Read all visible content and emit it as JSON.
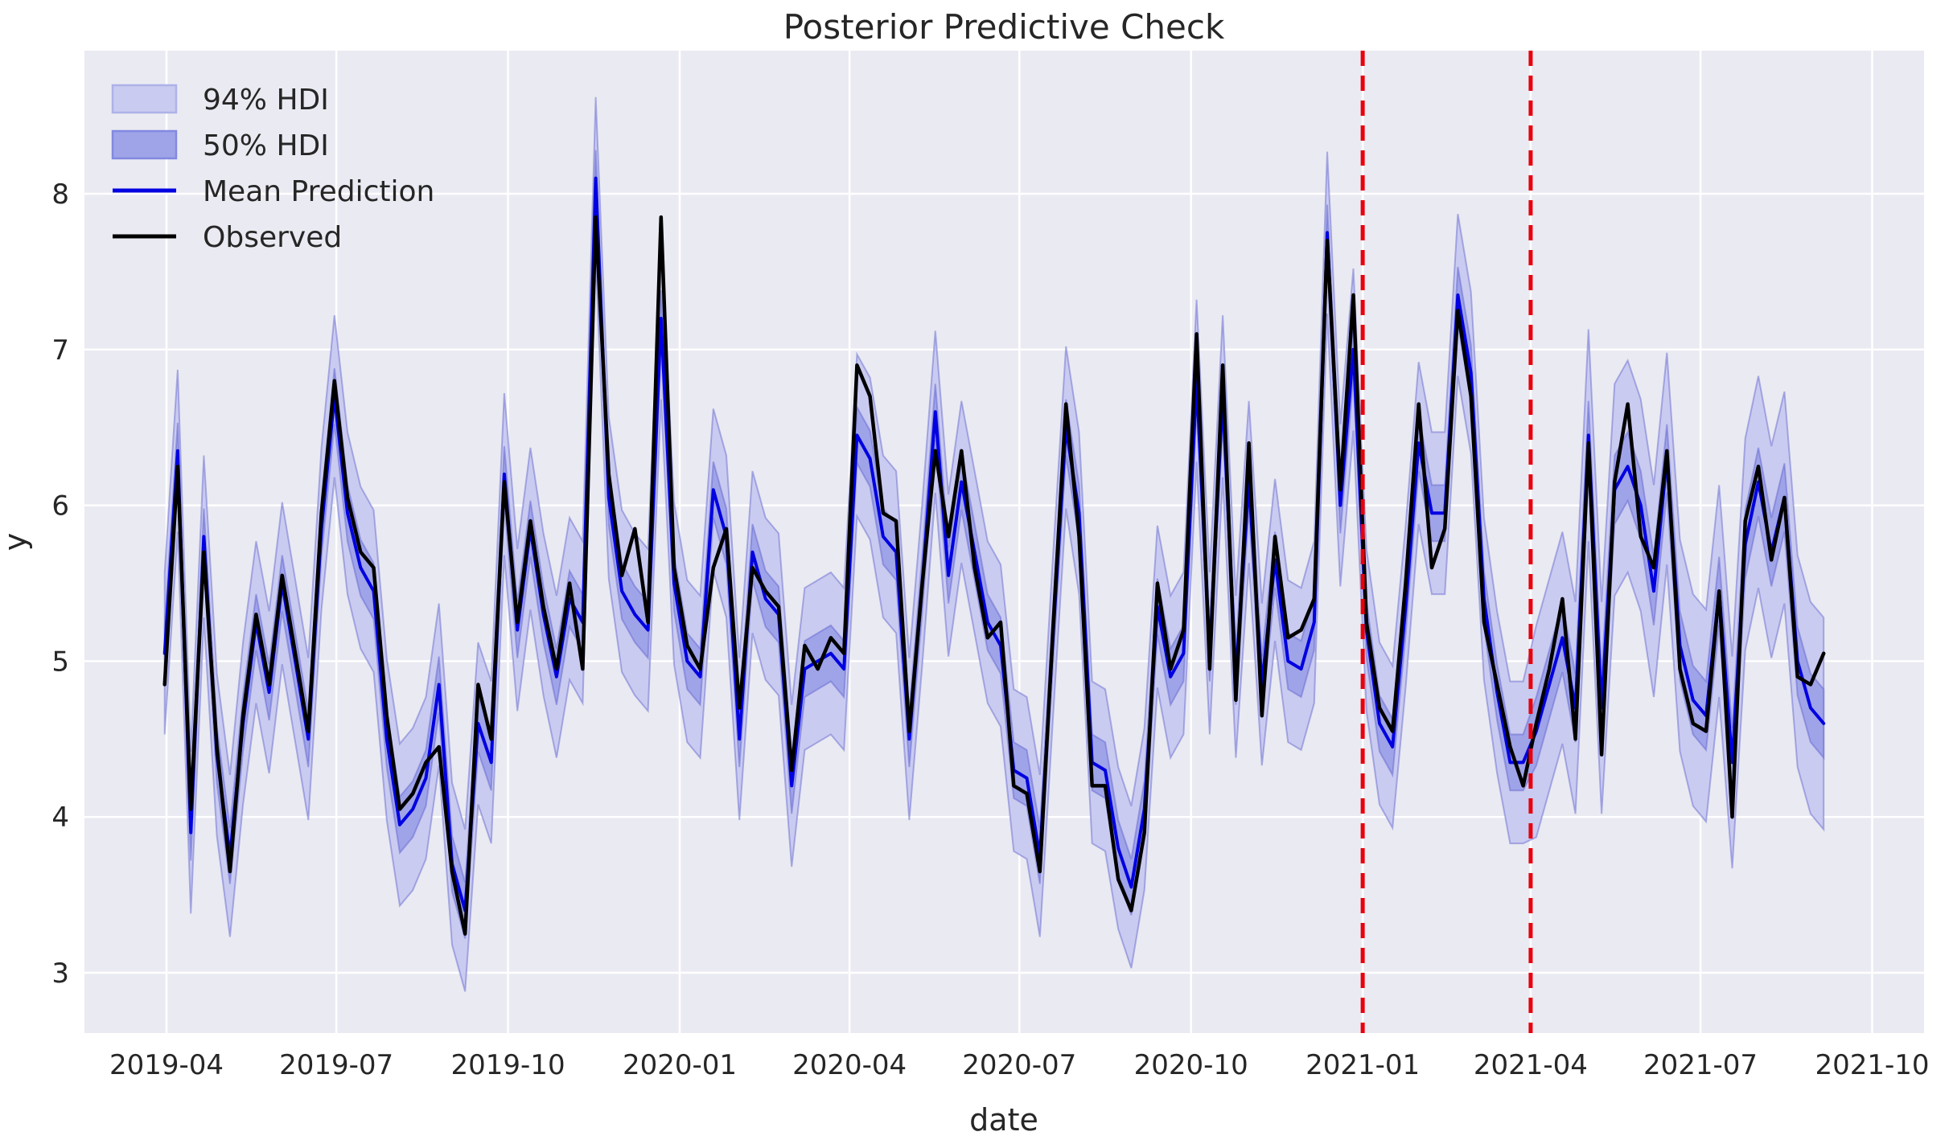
{
  "title": "Posterior Predictive Check",
  "axes": {
    "xlabel": "date",
    "ylabel": "y",
    "yticks": [
      3,
      4,
      5,
      6,
      7,
      8
    ],
    "xticks": [
      {
        "date": "2019-04-01",
        "label": "2019-04"
      },
      {
        "date": "2019-07-01",
        "label": "2019-07"
      },
      {
        "date": "2019-10-01",
        "label": "2019-10"
      },
      {
        "date": "2020-01-01",
        "label": "2020-01"
      },
      {
        "date": "2020-04-01",
        "label": "2020-04"
      },
      {
        "date": "2020-07-01",
        "label": "2020-07"
      },
      {
        "date": "2020-10-01",
        "label": "2020-10"
      },
      {
        "date": "2021-01-01",
        "label": "2021-01"
      },
      {
        "date": "2021-04-01",
        "label": "2021-04"
      },
      {
        "date": "2021-07-01",
        "label": "2021-07"
      },
      {
        "date": "2021-10-01",
        "label": "2021-10"
      }
    ]
  },
  "legend": {
    "items": [
      {
        "label": "94% HDI",
        "swatch": "patch"
      },
      {
        "label": "50% HDI",
        "swatch": "patch"
      },
      {
        "label": "Mean Prediction",
        "swatch": "line"
      },
      {
        "label": "Observed",
        "swatch": "line"
      }
    ]
  },
  "colors": {
    "figure_bg": "#ffffff",
    "axes_bg": "#eaeaf2",
    "grid": "#ffffff",
    "text": "#262626",
    "observed": "#000000",
    "mean": "#0000e0",
    "hdi94_fill": "#cacbf0",
    "hdi94_border": "#aeb2e8",
    "hdi50_fill": "#9fa3e8",
    "hdi50_border": "#8289e0",
    "band_edge": "rgba(90,95,205,0.45)",
    "vline": "#e8000b"
  },
  "vlines": [
    {
      "date": "2021-01-01",
      "style": "dashed"
    },
    {
      "date": "2021-04-01",
      "style": "dashed"
    }
  ],
  "chart_data": {
    "type": "line",
    "title": "Posterior Predictive Check",
    "xlabel": "date",
    "ylabel": "y",
    "grid": true,
    "legend_position": "upper left",
    "ylim": [
      2.6,
      8.92
    ],
    "xlim": [
      "2019-02-16",
      "2021-10-29"
    ],
    "frequency": "weekly",
    "dates": [
      "2019-03-31",
      "2019-04-07",
      "2019-04-14",
      "2019-04-21",
      "2019-04-28",
      "2019-05-05",
      "2019-05-12",
      "2019-05-19",
      "2019-05-26",
      "2019-06-02",
      "2019-06-09",
      "2019-06-16",
      "2019-06-23",
      "2019-06-30",
      "2019-07-07",
      "2019-07-14",
      "2019-07-21",
      "2019-07-28",
      "2019-08-04",
      "2019-08-11",
      "2019-08-18",
      "2019-08-25",
      "2019-09-01",
      "2019-09-08",
      "2019-09-15",
      "2019-09-22",
      "2019-09-29",
      "2019-10-06",
      "2019-10-13",
      "2019-10-20",
      "2019-10-27",
      "2019-11-03",
      "2019-11-10",
      "2019-11-17",
      "2019-11-24",
      "2019-12-01",
      "2019-12-08",
      "2019-12-15",
      "2019-12-22",
      "2019-12-29",
      "2020-01-05",
      "2020-01-12",
      "2020-01-19",
      "2020-01-26",
      "2020-02-02",
      "2020-02-09",
      "2020-02-16",
      "2020-02-23",
      "2020-03-01",
      "2020-03-08",
      "2020-03-15",
      "2020-03-22",
      "2020-03-29",
      "2020-04-05",
      "2020-04-12",
      "2020-04-19",
      "2020-04-26",
      "2020-05-03",
      "2020-05-10",
      "2020-05-17",
      "2020-05-24",
      "2020-05-31",
      "2020-06-07",
      "2020-06-14",
      "2020-06-21",
      "2020-06-28",
      "2020-07-05",
      "2020-07-12",
      "2020-07-19",
      "2020-07-26",
      "2020-08-02",
      "2020-08-09",
      "2020-08-16",
      "2020-08-23",
      "2020-08-30",
      "2020-09-06",
      "2020-09-13",
      "2020-09-20",
      "2020-09-27",
      "2020-10-04",
      "2020-10-11",
      "2020-10-18",
      "2020-10-25",
      "2020-11-01",
      "2020-11-08",
      "2020-11-15",
      "2020-11-22",
      "2020-11-29",
      "2020-12-06",
      "2020-12-13",
      "2020-12-20",
      "2020-12-27",
      "2021-01-03",
      "2021-01-10",
      "2021-01-17",
      "2021-01-24",
      "2021-01-31",
      "2021-02-07",
      "2021-02-14",
      "2021-02-21",
      "2021-02-28",
      "2021-03-07",
      "2021-03-14",
      "2021-03-21",
      "2021-03-28",
      "2021-04-04",
      "2021-04-11",
      "2021-04-18",
      "2021-04-25",
      "2021-05-02",
      "2021-05-09",
      "2021-05-16",
      "2021-05-23",
      "2021-05-30",
      "2021-06-06",
      "2021-06-13",
      "2021-06-20",
      "2021-06-27",
      "2021-07-04",
      "2021-07-11",
      "2021-07-18",
      "2021-07-25",
      "2021-08-01",
      "2021-08-08",
      "2021-08-15",
      "2021-08-22",
      "2021-08-29",
      "2021-09-05"
    ],
    "series": [
      {
        "name": "Observed",
        "values": [
          4.85,
          6.25,
          4.05,
          5.7,
          4.45,
          3.65,
          4.65,
          5.3,
          4.85,
          5.55,
          5.05,
          4.55,
          5.95,
          6.8,
          6.05,
          5.7,
          5.6,
          4.65,
          4.05,
          4.15,
          4.35,
          4.45,
          3.65,
          3.25,
          4.85,
          4.5,
          6.15,
          5.25,
          5.9,
          5.35,
          4.95,
          5.5,
          4.95,
          7.85,
          6.2,
          5.55,
          5.85,
          5.25,
          7.85,
          5.6,
          5.1,
          4.95,
          5.6,
          5.85,
          4.7,
          5.6,
          5.45,
          5.35,
          4.3,
          5.1,
          4.95,
          5.15,
          5.05,
          6.9,
          6.7,
          5.95,
          5.9,
          4.55,
          5.5,
          6.35,
          5.8,
          6.35,
          5.6,
          5.15,
          5.25,
          4.2,
          4.15,
          3.65,
          5.2,
          6.65,
          5.8,
          4.2,
          4.2,
          3.6,
          3.4,
          3.9,
          5.5,
          4.95,
          5.2,
          7.1,
          4.95,
          6.9,
          4.75,
          6.4,
          4.65,
          5.8,
          5.15,
          5.2,
          5.4,
          7.7,
          6.1,
          7.35,
          5.25,
          4.7,
          4.55,
          5.5,
          6.65,
          5.6,
          5.85,
          7.25,
          6.7,
          5.25,
          4.85,
          4.45,
          4.2,
          4.6,
          4.95,
          5.4,
          4.5,
          6.4,
          4.4,
          6.15,
          6.65,
          5.8,
          5.6,
          6.35,
          4.95,
          4.6,
          4.55,
          5.45,
          4.0,
          5.9,
          6.25,
          5.65,
          6.05,
          4.9,
          4.85,
          5.05
        ]
      },
      {
        "name": "Mean Prediction",
        "values": [
          5.05,
          6.35,
          3.9,
          5.8,
          4.4,
          3.75,
          4.6,
          5.25,
          4.8,
          5.5,
          5.0,
          4.5,
          5.85,
          6.7,
          5.95,
          5.6,
          5.45,
          4.5,
          3.95,
          4.05,
          4.25,
          4.85,
          3.7,
          3.4,
          4.6,
          4.35,
          6.2,
          5.2,
          5.85,
          5.3,
          4.9,
          5.4,
          5.25,
          8.1,
          6.05,
          5.45,
          5.3,
          5.2,
          7.2,
          5.5,
          5.0,
          4.9,
          6.1,
          5.8,
          4.5,
          5.7,
          5.4,
          5.3,
          4.2,
          4.95,
          5.0,
          5.05,
          4.95,
          6.45,
          6.3,
          5.8,
          5.7,
          4.5,
          5.5,
          6.6,
          5.55,
          6.15,
          5.7,
          5.25,
          5.1,
          4.3,
          4.25,
          3.75,
          5.15,
          6.5,
          5.95,
          4.35,
          4.3,
          3.8,
          3.55,
          4.05,
          5.35,
          4.9,
          5.05,
          6.8,
          5.05,
          6.7,
          4.9,
          6.15,
          4.85,
          5.65,
          5.0,
          4.95,
          5.25,
          7.75,
          6.0,
          7.0,
          5.2,
          4.6,
          4.45,
          5.35,
          6.4,
          5.95,
          5.95,
          7.35,
          6.85,
          5.4,
          4.8,
          4.35,
          4.35,
          4.55,
          4.85,
          5.15,
          4.7,
          6.45,
          4.7,
          6.1,
          6.25,
          6.0,
          5.45,
          6.3,
          5.1,
          4.75,
          4.65,
          5.45,
          4.35,
          5.75,
          6.15,
          5.7,
          6.05,
          5.0,
          4.7,
          4.6
        ]
      }
    ],
    "hdi_bands": {
      "hdi50_halfwidth": 0.18,
      "hdi94_halfwidth": 0.52,
      "hdi50_halfwidth_after_split": 0.22,
      "hdi94_halfwidth_after_split": 0.68,
      "split_date": "2021-04-01",
      "note": "bands centered on Mean Prediction"
    },
    "vlines": [
      "2021-01-01",
      "2021-04-01"
    ]
  }
}
